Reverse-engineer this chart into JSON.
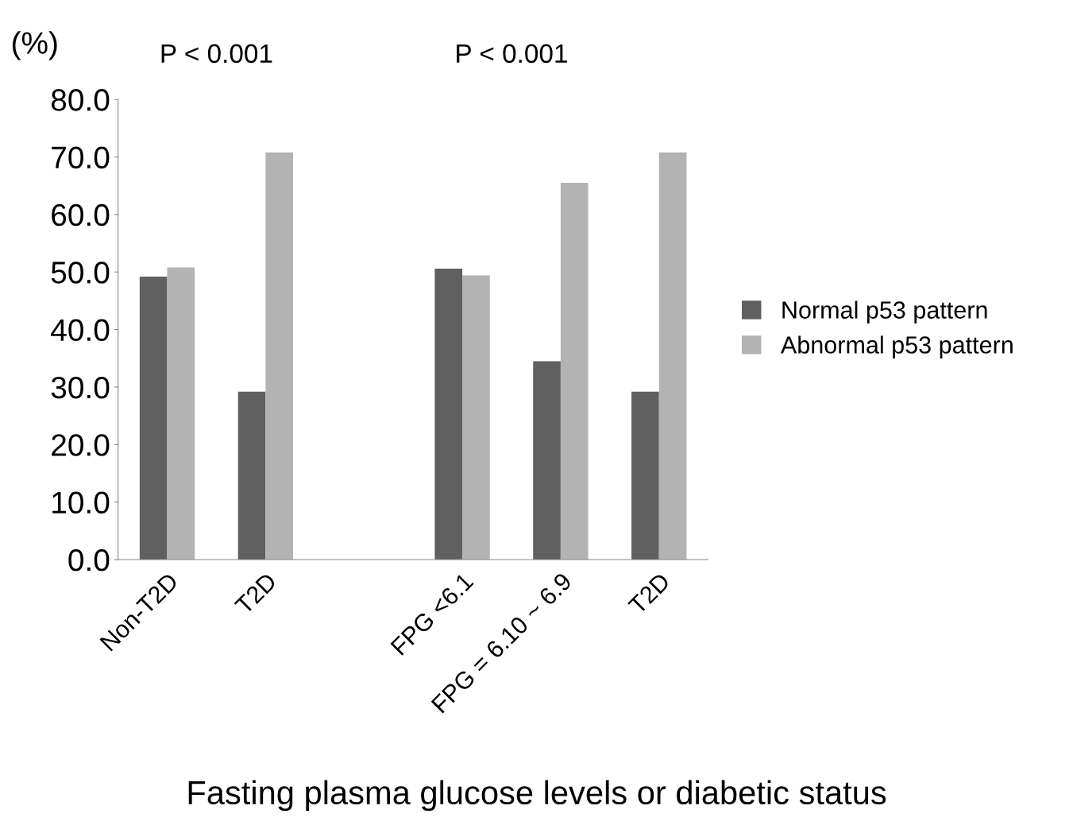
{
  "chart_data": {
    "type": "bar",
    "xlabel": "Fasting plasma glucose levels or diabetic status",
    "ylabel": "(%)",
    "categories": [
      "Non-T2D",
      "T2D",
      null,
      "FPG <6.1",
      "FPG = 6.10 ~ 6.9",
      "T2D"
    ],
    "series": [
      {
        "name": "Normal p53 pattern",
        "color": "#606060",
        "values": [
          49.2,
          29.2,
          null,
          50.6,
          34.5,
          29.2
        ]
      },
      {
        "name": "Abnormal p53 pattern",
        "color": "#b3b3b3",
        "values": [
          50.8,
          70.8,
          null,
          49.4,
          65.5,
          70.8
        ]
      }
    ],
    "ylim": [
      0,
      80
    ],
    "yticks": [
      {
        "value": 0,
        "label": "0.0"
      },
      {
        "value": 10,
        "label": "10.0"
      },
      {
        "value": 20,
        "label": "20.0"
      },
      {
        "value": 30,
        "label": "30.0"
      },
      {
        "value": 40,
        "label": "40.0"
      },
      {
        "value": 50,
        "label": "50.0"
      },
      {
        "value": 60,
        "label": "60.0"
      },
      {
        "value": 70,
        "label": "70.0"
      },
      {
        "value": 80,
        "label": "80.0"
      }
    ],
    "annotations": [
      "P < 0.001",
      "P < 0.001"
    ],
    "grid": false,
    "legend": "right"
  }
}
